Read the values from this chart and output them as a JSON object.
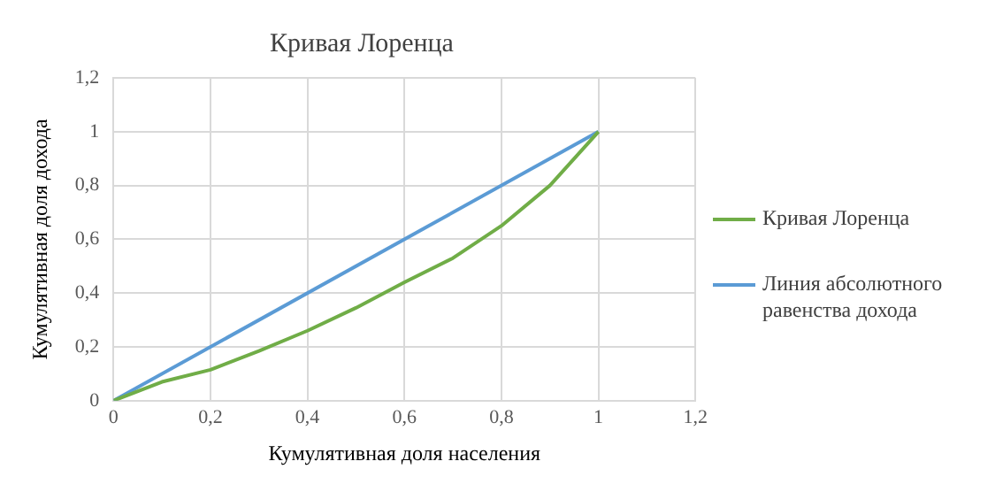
{
  "chart_data": {
    "type": "line",
    "title": "Кривая Лоренца",
    "xlabel": "Кумулятивная доля населения",
    "ylabel": "Кумулятивная доля дохода",
    "series": [
      {
        "name": "Кривая Лоренца",
        "color": "#70ad47",
        "x": [
          0,
          0.1,
          0.2,
          0.3,
          0.4,
          0.5,
          0.6,
          0.7,
          0.8,
          0.9,
          1
        ],
        "values": [
          0,
          0.07,
          0.115,
          0.185,
          0.26,
          0.345,
          0.44,
          0.53,
          0.65,
          0.8,
          1
        ]
      },
      {
        "name": "Линия абсолютного равенства дохода",
        "color": "#5b9bd5",
        "x": [
          0,
          1
        ],
        "values": [
          0,
          1
        ]
      }
    ],
    "xlim": [
      0,
      1.2
    ],
    "xticks": [
      0,
      {
        "value": 0.2,
        "label": "0,2"
      },
      {
        "value": 0.4,
        "label": "0,4"
      },
      {
        "value": 0.6,
        "label": "0,6"
      },
      {
        "value": 0.8,
        "label": "0,8"
      },
      1,
      {
        "value": 1.2,
        "label": "1,2"
      }
    ],
    "ylim": [
      0,
      1.2
    ],
    "yticks": [
      0,
      {
        "value": 0.2,
        "label": "0,2"
      },
      {
        "value": 0.4,
        "label": "0,4"
      },
      {
        "value": 0.6,
        "label": "0,6"
      },
      {
        "value": 0.8,
        "label": "0,8"
      },
      1,
      {
        "value": 1.2,
        "label": "1,2"
      }
    ],
    "grid": true,
    "legend": "right",
    "marker": "none",
    "line_style": "solid"
  }
}
